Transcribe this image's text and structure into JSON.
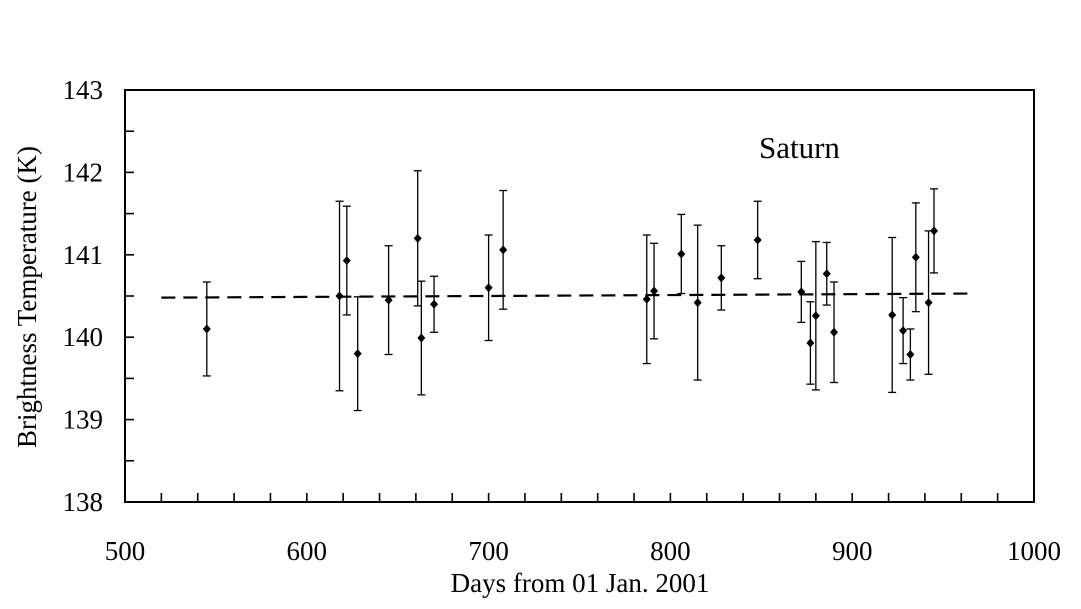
{
  "chart_data": {
    "type": "scatter",
    "xlabel": "Days from 01 Jan. 2001",
    "ylabel": "Brightness Temperature (K)",
    "annotation": "Saturn",
    "xlim": [
      500,
      1000
    ],
    "ylim": [
      138,
      143
    ],
    "x_ticks": [
      500,
      600,
      700,
      800,
      900,
      1000
    ],
    "y_ticks": [
      138,
      139,
      140,
      141,
      142,
      143
    ],
    "x_minor_step": 20,
    "y_minor_step": 0.5,
    "grid": false,
    "colors": {
      "marks": "#000000",
      "background": "#ffffff"
    },
    "series": [
      {
        "points": [
          {
            "x": 545,
            "y": 140.1,
            "err": 0.57
          },
          {
            "x": 618,
            "y": 140.5,
            "err": 1.15
          },
          {
            "x": 622,
            "y": 140.93,
            "err": 0.66
          },
          {
            "x": 628,
            "y": 139.8,
            "err": 0.69
          },
          {
            "x": 645,
            "y": 140.45,
            "err": 0.66
          },
          {
            "x": 661,
            "y": 141.2,
            "err": 0.82
          },
          {
            "x": 663,
            "y": 139.99,
            "err": 0.69
          },
          {
            "x": 670,
            "y": 140.4,
            "err": 0.34
          },
          {
            "x": 700,
            "y": 140.6,
            "err": 0.64
          },
          {
            "x": 708,
            "y": 141.06,
            "err": 0.72
          },
          {
            "x": 787,
            "y": 140.46,
            "err": 0.78
          },
          {
            "x": 791,
            "y": 140.56,
            "err": 0.58
          },
          {
            "x": 806,
            "y": 141.01,
            "err": 0.48
          },
          {
            "x": 815,
            "y": 140.42,
            "err": 0.94
          },
          {
            "x": 828,
            "y": 140.72,
            "err": 0.39
          },
          {
            "x": 848,
            "y": 141.18,
            "err": 0.47
          },
          {
            "x": 872,
            "y": 140.55,
            "err": 0.37
          },
          {
            "x": 877,
            "y": 139.93,
            "err": 0.5
          },
          {
            "x": 880,
            "y": 140.26,
            "err": 0.9
          },
          {
            "x": 886,
            "y": 140.77,
            "err": 0.38
          },
          {
            "x": 890,
            "y": 140.06,
            "err": 0.61
          },
          {
            "x": 922,
            "y": 140.27,
            "err": 0.94
          },
          {
            "x": 928,
            "y": 140.08,
            "err": 0.4
          },
          {
            "x": 932,
            "y": 139.79,
            "err": 0.31
          },
          {
            "x": 935,
            "y": 140.97,
            "err": 0.66
          },
          {
            "x": 942,
            "y": 140.42,
            "err": 0.87
          },
          {
            "x": 945,
            "y": 141.29,
            "err": 0.51
          }
        ]
      }
    ],
    "fit_line": {
      "style": "dashed",
      "x": [
        520,
        967
      ],
      "y": [
        140.48,
        140.53
      ]
    }
  }
}
